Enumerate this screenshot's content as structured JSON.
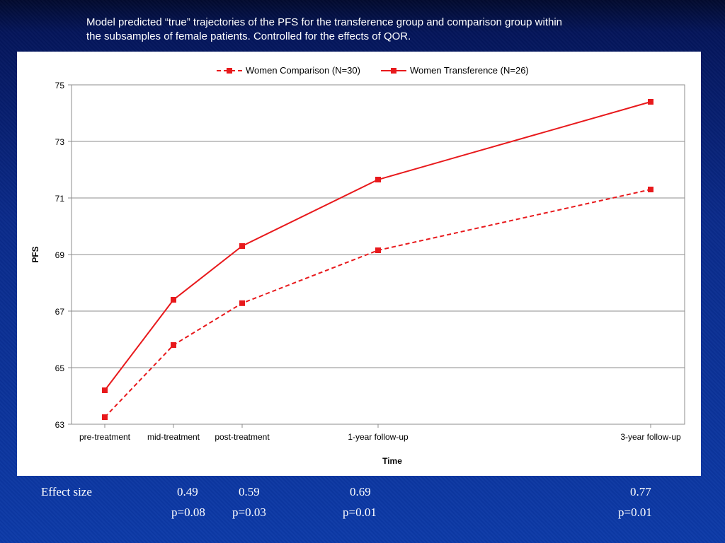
{
  "slide": {
    "caption_lines": [
      "Model predicted “true” trajectories of the PFS for the transference group and comparison group within",
      "the subsamples of female patients. Controlled for the effects of QOR."
    ]
  },
  "chart_data": {
    "type": "line",
    "categories": [
      "pre-treatment",
      "mid-treatment",
      "post-treatment",
      "1-year follow-up",
      "3-year follow-up"
    ],
    "x_months": [
      0,
      6,
      12,
      24,
      60
    ],
    "series": [
      {
        "name": "Women Comparison (N=30)",
        "values": [
          63.25,
          65.8,
          67.28,
          69.15,
          71.3
        ],
        "line_style": "dashed",
        "marker": "square",
        "color": "#e8191c"
      },
      {
        "name": "Women Transference (N=26)",
        "values": [
          64.2,
          67.4,
          69.3,
          71.65,
          74.4
        ],
        "line_style": "solid",
        "marker": "square",
        "color": "#e8191c"
      }
    ],
    "xlabel": "Time",
    "ylabel": "PFS",
    "ylim": [
      63,
      75
    ],
    "yticks": [
      63,
      65,
      67,
      69,
      71,
      73,
      75
    ],
    "grid": "horizontal",
    "legend_position": "top-center"
  },
  "effect_sizes": {
    "label": "Effect size",
    "items": [
      {
        "value": "0.49",
        "p": "p=0.08"
      },
      {
        "value": "0.59",
        "p": "p=0.03"
      },
      {
        "value": "0.69",
        "p": "p=0.01"
      },
      {
        "value": "0.77",
        "p": "p=0.01"
      }
    ]
  }
}
